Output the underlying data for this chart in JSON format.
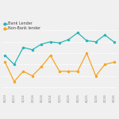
{
  "x_labels": [
    "3Q13",
    "4Q13",
    "1Q14",
    "2Q14",
    "3Q14",
    "4Q14",
    "1Q15",
    "2Q15",
    "3Q15",
    "4Q15",
    "1Q16",
    "2Q16",
    "3Q16"
  ],
  "bank_lender": [
    58,
    50,
    65,
    63,
    68,
    70,
    69,
    72,
    78,
    71,
    70,
    76,
    70
  ],
  "non_bank_lender": [
    52,
    35,
    44,
    40,
    48,
    58,
    44,
    44,
    44,
    60,
    40,
    50,
    52
  ],
  "bank_color": "#2ab5b5",
  "non_bank_color": "#f5a623",
  "legend_bank": "Bank Lender",
  "legend_non_bank": "Non-Bank lender",
  "background_color": "#f0f0f0",
  "grid_color": "#ffffff",
  "line_width": 0.9,
  "marker_size": 1.5,
  "ylim_low": 25,
  "ylim_high": 88
}
